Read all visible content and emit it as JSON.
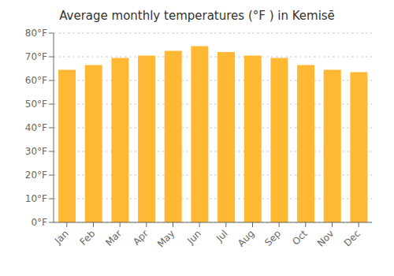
{
  "chart_data": {
    "type": "bar",
    "title": "Average monthly temperatures (°F ) in Kemisē",
    "categories": [
      "Jan",
      "Feb",
      "Mar",
      "Apr",
      "May",
      "Jun",
      "Jul",
      "Aug",
      "Sep",
      "Oct",
      "Nov",
      "Dec"
    ],
    "values": [
      64.5,
      66.5,
      69.5,
      70.5,
      72.5,
      74.5,
      72.0,
      70.5,
      69.5,
      66.5,
      64.5,
      63.5
    ],
    "color": "#FFB833",
    "ylim": [
      0,
      80
    ],
    "yticks": [
      {
        "value": 0,
        "label": "0°F"
      },
      {
        "value": 10,
        "label": "10°F"
      },
      {
        "value": 20,
        "label": "20°F"
      },
      {
        "value": 30,
        "label": "30°F"
      },
      {
        "value": 40,
        "label": "40°F"
      },
      {
        "value": 50,
        "label": "50°F"
      },
      {
        "value": 60,
        "label": "60°F"
      },
      {
        "value": 70,
        "label": "70°F"
      },
      {
        "value": 80,
        "label": "80°F"
      }
    ],
    "grid": true
  }
}
